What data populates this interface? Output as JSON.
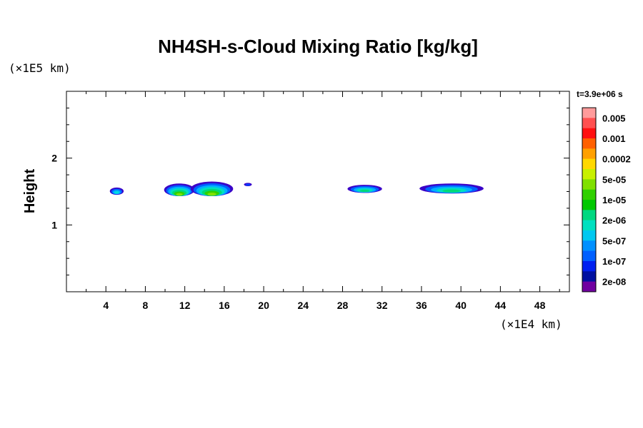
{
  "chart_data": {
    "type": "heatmap",
    "title": "NH4SH-s-Cloud Mixing Ratio [kg/kg]",
    "ylabel": "Height",
    "y_unit": "(×1E5 km)",
    "x_unit": "(×1E4 km)",
    "time_label": "t=3.9e+06 s",
    "xlim": [
      0,
      51
    ],
    "ylim": [
      0,
      3
    ],
    "x_ticks": [
      "4",
      "8",
      "12",
      "16",
      "20",
      "24",
      "28",
      "32",
      "36",
      "40",
      "44",
      "48"
    ],
    "y_ticks": [
      "1",
      "2"
    ],
    "colorbar": {
      "labels": [
        "0.005",
        "0.001",
        "0.0002",
        "5e-05",
        "1e-05",
        "2e-06",
        "5e-07",
        "1e-07",
        "2e-08"
      ],
      "colors": [
        "#ff9b9b",
        "#ff5050",
        "#ff1010",
        "#ff6000",
        "#ffa000",
        "#ffd800",
        "#c8f000",
        "#80e000",
        "#30d000",
        "#00c800",
        "#00d880",
        "#00e0c0",
        "#00c8f0",
        "#0090ff",
        "#0060ff",
        "#0020f0",
        "#0010a0",
        "#7000a0"
      ]
    },
    "cloud_patches": [
      {
        "x": [
          4.4,
          5.8
        ],
        "y": [
          1.45,
          1.56
        ],
        "max_level": "5e-07"
      },
      {
        "x": [
          9.9,
          13.0
        ],
        "y": [
          1.43,
          1.62
        ],
        "max_level": "1e-05"
      },
      {
        "x": [
          12.6,
          16.9
        ],
        "y": [
          1.43,
          1.65
        ],
        "max_level": "1e-05"
      },
      {
        "x": [
          18.0,
          18.8
        ],
        "y": [
          1.58,
          1.63
        ],
        "max_level": "1e-07"
      },
      {
        "x": [
          28.5,
          32.0
        ],
        "y": [
          1.48,
          1.6
        ],
        "max_level": "2e-06"
      },
      {
        "x": [
          35.8,
          42.3
        ],
        "y": [
          1.47,
          1.62
        ],
        "max_level": "2e-06"
      }
    ]
  }
}
